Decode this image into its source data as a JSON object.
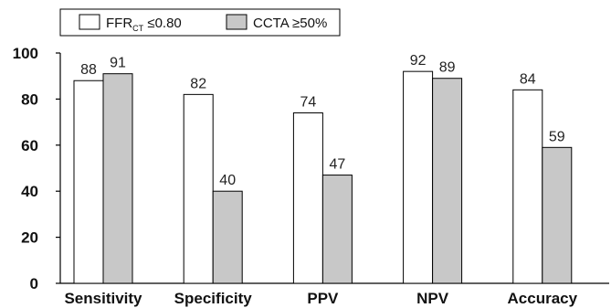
{
  "chart_data": {
    "type": "bar",
    "categories": [
      "Sensitivity",
      "Specificity",
      "PPV",
      "NPV",
      "Accuracy"
    ],
    "series": [
      {
        "name": "FFR_CT ≤0.80",
        "name_main": "FFR",
        "name_sub": "CT",
        "name_rest": " ≤0.80",
        "color": "#ffffff",
        "values": [
          88,
          82,
          74,
          92,
          84
        ]
      },
      {
        "name": "CCTA ≥50%",
        "color": "#c8c8c8",
        "values": [
          91,
          40,
          47,
          89,
          59
        ]
      }
    ],
    "yticks": [
      0,
      20,
      40,
      60,
      80,
      100
    ],
    "ylim": [
      0,
      100
    ],
    "grid": false,
    "legend_position": "top-left",
    "title": "",
    "xlabel": "",
    "ylabel": ""
  }
}
